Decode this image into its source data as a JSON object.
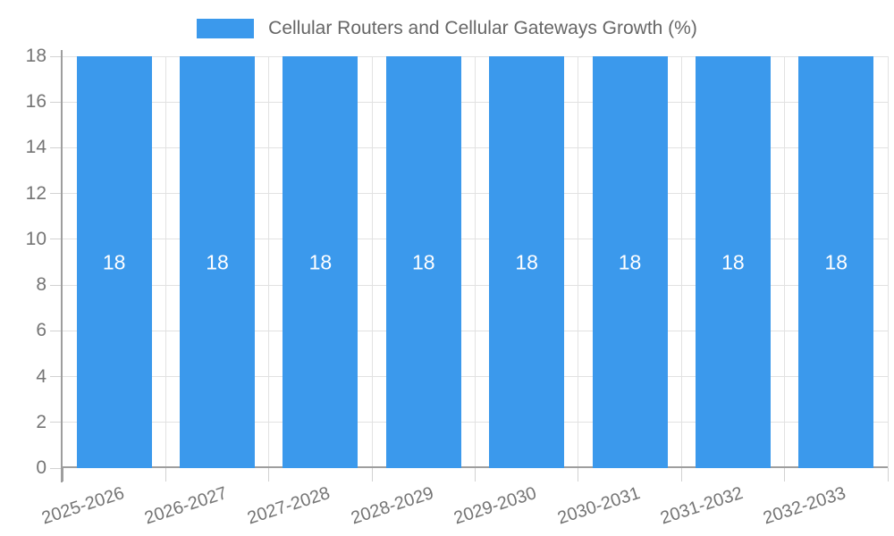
{
  "legend": {
    "label": "Cellular Routers and Cellular Gateways Growth (%)",
    "swatch_color": "#3B99EC"
  },
  "chart_data": {
    "type": "bar",
    "title": "Cellular Routers and Cellular Gateways Growth (%)",
    "categories": [
      "2025-2026",
      "2026-2027",
      "2027-2028",
      "2028-2029",
      "2029-2030",
      "2030-2031",
      "2031-2032",
      "2032-2033"
    ],
    "values": [
      18,
      18,
      18,
      18,
      18,
      18,
      18,
      18
    ],
    "bar_value_labels": [
      "18",
      "18",
      "18",
      "18",
      "18",
      "18",
      "18",
      "18"
    ],
    "xlabel": "",
    "ylabel": "",
    "ylim": [
      0,
      18
    ],
    "ytick_step": 2,
    "ytick_labels": [
      "0",
      "2",
      "4",
      "6",
      "8",
      "10",
      "12",
      "14",
      "16",
      "18"
    ],
    "grid": true,
    "legend_position": "top",
    "colors": {
      "bar": "#3B99EC",
      "bar_label": "#FFFFFF",
      "grid": "#E2E2E2",
      "tick": "#D2D2D2",
      "axis": "#9E9E9E",
      "axis_label": "#757575",
      "legend_text": "#666666"
    }
  }
}
